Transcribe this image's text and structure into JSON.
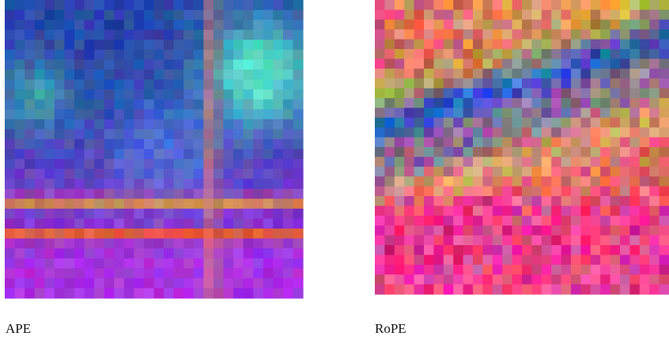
{
  "figure": {
    "panels": [
      {
        "caption": "APE"
      },
      {
        "caption": "RoPE"
      }
    ]
  }
}
